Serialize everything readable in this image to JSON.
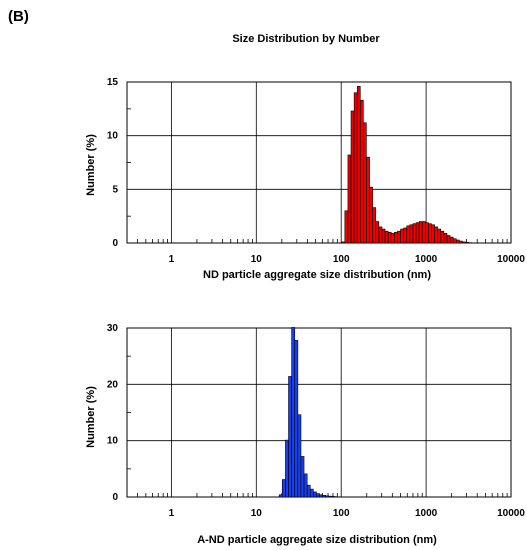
{
  "figure": {
    "panel_label": "(B)",
    "title": "Size Distribution by Number"
  },
  "chart_data": [
    {
      "type": "bar",
      "title": "Size Distribution by Number",
      "xlabel": "ND particle aggregate size distribution (nm)",
      "ylabel": "Number (%)",
      "xscale": "log",
      "xlim": [
        0.3,
        10000
      ],
      "ylim": [
        0,
        15
      ],
      "xticks": [
        1,
        10,
        100,
        1000,
        10000
      ],
      "xtick_labels": [
        "1",
        "10",
        "100",
        "1000",
        "10000"
      ],
      "yticks": [
        0,
        5,
        10,
        15
      ],
      "ytick_labels": [
        "0",
        "5",
        "10",
        "15"
      ],
      "grid": true,
      "bar_color": "#ee0000",
      "categories": [
        "106",
        "115",
        "125",
        "136",
        "148",
        "161",
        "175",
        "190",
        "207",
        "225",
        "245",
        "266",
        "290",
        "315",
        "343",
        "373",
        "405",
        "441",
        "479",
        "521",
        "567",
        "617",
        "671",
        "730",
        "794",
        "863",
        "939",
        "1021",
        "1110",
        "1208",
        "1314",
        "1429",
        "1554",
        "1690",
        "1838",
        "2000",
        "2175",
        "2365",
        "2573",
        "2798",
        "3043",
        "3310",
        "3600"
      ],
      "values": [
        0.1,
        3.0,
        8.2,
        12.3,
        14.0,
        14.6,
        13.3,
        11.2,
        8.0,
        5.2,
        3.3,
        2.0,
        1.5,
        1.3,
        1.1,
        1.0,
        0.9,
        1.0,
        1.1,
        1.3,
        1.4,
        1.6,
        1.7,
        1.8,
        1.9,
        2.0,
        2.0,
        1.9,
        1.8,
        1.7,
        1.5,
        1.3,
        1.1,
        0.9,
        0.7,
        0.55,
        0.4,
        0.28,
        0.18,
        0.1,
        0.06,
        0.03,
        0.01
      ]
    },
    {
      "type": "bar",
      "title": "",
      "xlabel": "A-ND particle aggregate size distribution (nm)",
      "ylabel": "Number (%)",
      "xscale": "log",
      "xlim": [
        0.3,
        10000
      ],
      "ylim": [
        0,
        30
      ],
      "xticks": [
        1,
        10,
        100,
        1000,
        10000
      ],
      "xtick_labels": [
        "1",
        "10",
        "100",
        "1000",
        "10000"
      ],
      "yticks": [
        0,
        10,
        20,
        30
      ],
      "ytick_labels": [
        "0",
        "10",
        "20",
        "30"
      ],
      "grid": true,
      "bar_color": "#1a40ee",
      "categories": [
        "19.4",
        "21.1",
        "23.0",
        "25.0",
        "27.2",
        "29.6",
        "32.2",
        "35.0",
        "38.1",
        "41.4",
        "45.0",
        "49.0",
        "53.3",
        "57.9",
        "63.0",
        "68.5",
        "74.5",
        "81.1",
        "88.2",
        "95.9",
        "104.3"
      ],
      "values": [
        0.4,
        3.1,
        10.1,
        21.4,
        30.1,
        27.8,
        14.6,
        7.2,
        4.1,
        2.1,
        1.4,
        0.9,
        0.6,
        0.4,
        0.3,
        0.2,
        0.15,
        0.1,
        0.05,
        0.03,
        0.01
      ]
    }
  ]
}
